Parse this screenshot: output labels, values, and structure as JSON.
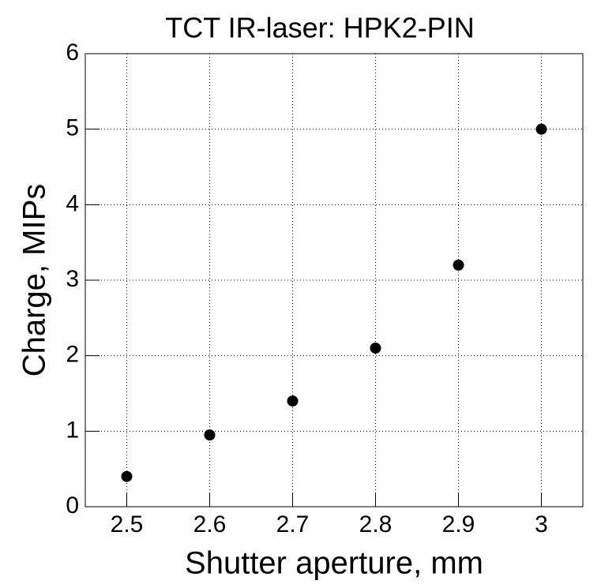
{
  "chart_data": {
    "type": "scatter",
    "title": "TCT IR-laser: HPK2-PIN",
    "x_label": "Shutter aperture, mm",
    "y_label": "Charge, MIPs",
    "x": [
      2.5,
      2.6,
      2.7,
      2.8,
      2.9,
      3.0
    ],
    "series": [
      {
        "color": "#000000",
        "values": [
          0.4,
          0.95,
          1.4,
          2.1,
          3.2,
          5.0
        ]
      }
    ],
    "xlim": [
      2.45,
      3.05
    ],
    "xticks": [
      2.5,
      2.6,
      2.7,
      2.8,
      2.9,
      3
    ],
    "ylim": [
      0,
      6
    ],
    "yticks": [
      0,
      1,
      2,
      3,
      4,
      5,
      6
    ],
    "grid": true
  }
}
